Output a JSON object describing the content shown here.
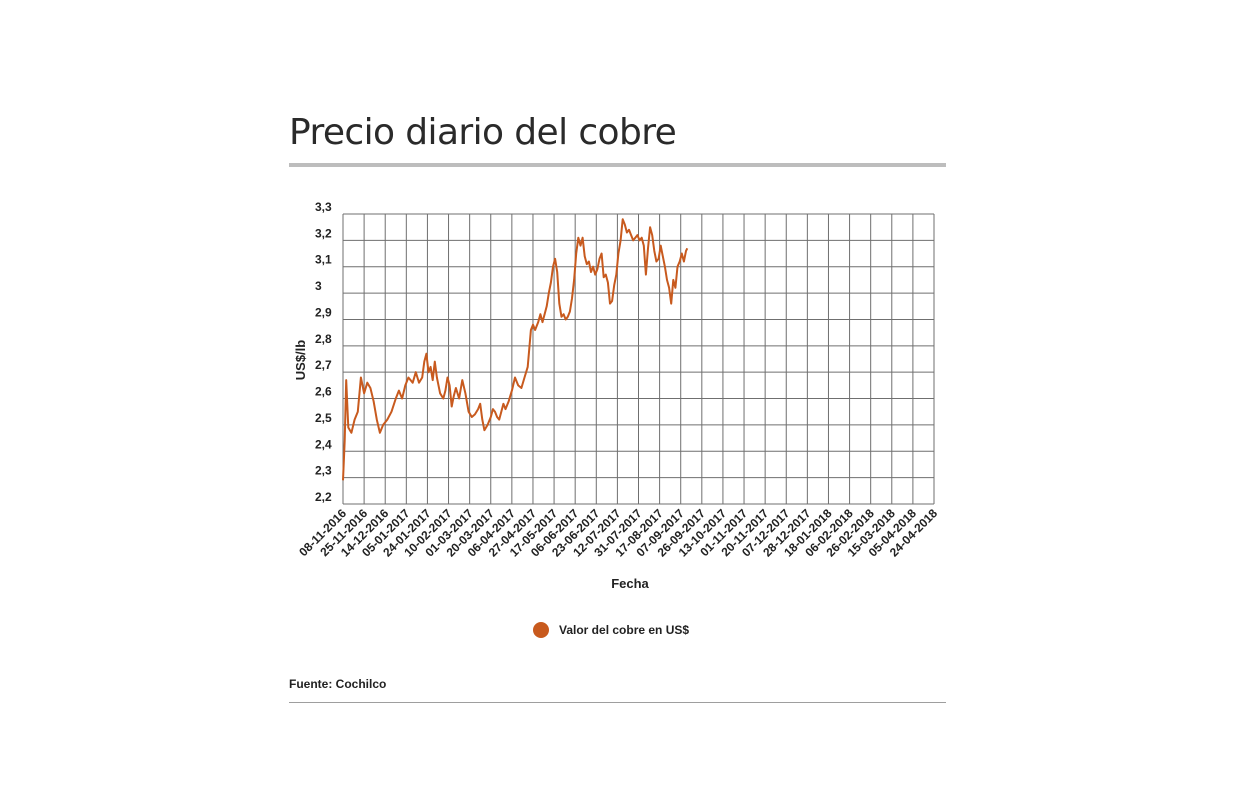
{
  "title": "Precio diario del cobre",
  "source": "Fuente: Cochilco",
  "colors": {
    "line": "#c85a1e",
    "grid": "#6f6f6f",
    "rule": "#bdbdbd"
  },
  "chart_data": {
    "type": "line",
    "xlabel": "Fecha",
    "ylabel": "US$/lb",
    "ylim": [
      2.2,
      3.3
    ],
    "yticks": [
      "2,2",
      "2,3",
      "2,4",
      "2,5",
      "2,6",
      "2,7",
      "2,8",
      "2,9",
      "3",
      "3,1",
      "3,2",
      "3,3"
    ],
    "xticks": [
      "08-11-2016",
      "25-11-2016",
      "14-12-2016",
      "05-01-2017",
      "24-01-2017",
      "10-02-2017",
      "01-03-2017",
      "20-03-2017",
      "06-04-2017",
      "27-04-2017",
      "17-05-2017",
      "06-06-2017",
      "23-06-2017",
      "12-07-2017",
      "31-07-2017",
      "17-08-2017",
      "07-09-2017",
      "26-09-2017",
      "13-10-2017",
      "01-11-2017",
      "20-11-2017",
      "07-12-2017",
      "28-12-2017",
      "18-01-2018",
      "06-02-2018",
      "26-02-2018",
      "15-03-2018",
      "05-04-2018",
      "24-04-2018"
    ],
    "grid": true,
    "legend": "bottom-center",
    "series": [
      {
        "name": "Valor del cobre en US$",
        "color": "#c85a1e",
        "points": [
          [
            0,
            2.29
          ],
          [
            0.08,
            2.44
          ],
          [
            0.15,
            2.67
          ],
          [
            0.25,
            2.49
          ],
          [
            0.4,
            2.47
          ],
          [
            0.55,
            2.52
          ],
          [
            0.7,
            2.55
          ],
          [
            0.85,
            2.68
          ],
          [
            1.0,
            2.62
          ],
          [
            1.15,
            2.66
          ],
          [
            1.3,
            2.64
          ],
          [
            1.45,
            2.59
          ],
          [
            1.6,
            2.52
          ],
          [
            1.75,
            2.47
          ],
          [
            1.9,
            2.5
          ],
          [
            2.1,
            2.52
          ],
          [
            2.3,
            2.55
          ],
          [
            2.5,
            2.6
          ],
          [
            2.65,
            2.63
          ],
          [
            2.8,
            2.6
          ],
          [
            2.95,
            2.65
          ],
          [
            3.1,
            2.68
          ],
          [
            3.3,
            2.66
          ],
          [
            3.45,
            2.7
          ],
          [
            3.6,
            2.66
          ],
          [
            3.75,
            2.68
          ],
          [
            3.85,
            2.74
          ],
          [
            3.95,
            2.77
          ],
          [
            4.05,
            2.7
          ],
          [
            4.15,
            2.72
          ],
          [
            4.25,
            2.67
          ],
          [
            4.35,
            2.74
          ],
          [
            4.45,
            2.68
          ],
          [
            4.6,
            2.62
          ],
          [
            4.75,
            2.6
          ],
          [
            4.85,
            2.63
          ],
          [
            4.95,
            2.68
          ],
          [
            5.05,
            2.65
          ],
          [
            5.15,
            2.57
          ],
          [
            5.25,
            2.61
          ],
          [
            5.35,
            2.64
          ],
          [
            5.5,
            2.6
          ],
          [
            5.65,
            2.67
          ],
          [
            5.8,
            2.62
          ],
          [
            5.95,
            2.55
          ],
          [
            6.1,
            2.53
          ],
          [
            6.25,
            2.54
          ],
          [
            6.4,
            2.56
          ],
          [
            6.5,
            2.58
          ],
          [
            6.6,
            2.52
          ],
          [
            6.7,
            2.48
          ],
          [
            6.85,
            2.5
          ],
          [
            7.0,
            2.53
          ],
          [
            7.1,
            2.56
          ],
          [
            7.2,
            2.55
          ],
          [
            7.3,
            2.53
          ],
          [
            7.4,
            2.52
          ],
          [
            7.5,
            2.55
          ],
          [
            7.6,
            2.58
          ],
          [
            7.7,
            2.56
          ],
          [
            7.85,
            2.59
          ],
          [
            8.0,
            2.63
          ],
          [
            8.15,
            2.68
          ],
          [
            8.3,
            2.65
          ],
          [
            8.45,
            2.64
          ],
          [
            8.6,
            2.68
          ],
          [
            8.75,
            2.72
          ],
          [
            8.9,
            2.86
          ],
          [
            9.0,
            2.88
          ],
          [
            9.1,
            2.86
          ],
          [
            9.25,
            2.89
          ],
          [
            9.35,
            2.92
          ],
          [
            9.45,
            2.89
          ],
          [
            9.55,
            2.92
          ],
          [
            9.65,
            2.95
          ],
          [
            9.75,
            3.0
          ],
          [
            9.85,
            3.04
          ],
          [
            9.95,
            3.1
          ],
          [
            10.05,
            3.13
          ],
          [
            10.15,
            3.08
          ],
          [
            10.25,
            2.96
          ],
          [
            10.35,
            2.91
          ],
          [
            10.45,
            2.92
          ],
          [
            10.55,
            2.9
          ],
          [
            10.65,
            2.91
          ],
          [
            10.75,
            2.93
          ],
          [
            10.85,
            2.98
          ],
          [
            10.95,
            3.05
          ],
          [
            11.05,
            3.15
          ],
          [
            11.15,
            3.21
          ],
          [
            11.25,
            3.18
          ],
          [
            11.35,
            3.21
          ],
          [
            11.45,
            3.14
          ],
          [
            11.55,
            3.11
          ],
          [
            11.65,
            3.12
          ],
          [
            11.75,
            3.08
          ],
          [
            11.85,
            3.1
          ],
          [
            11.95,
            3.07
          ],
          [
            12.05,
            3.09
          ],
          [
            12.15,
            3.13
          ],
          [
            12.25,
            3.15
          ],
          [
            12.35,
            3.06
          ],
          [
            12.45,
            3.07
          ],
          [
            12.55,
            3.04
          ],
          [
            12.65,
            2.96
          ],
          [
            12.75,
            2.97
          ],
          [
            12.85,
            3.03
          ],
          [
            12.95,
            3.07
          ],
          [
            13.05,
            3.15
          ],
          [
            13.15,
            3.2
          ],
          [
            13.25,
            3.28
          ],
          [
            13.35,
            3.26
          ],
          [
            13.45,
            3.23
          ],
          [
            13.55,
            3.24
          ],
          [
            13.65,
            3.22
          ],
          [
            13.75,
            3.2
          ],
          [
            13.85,
            3.21
          ],
          [
            13.95,
            3.22
          ],
          [
            14.05,
            3.2
          ],
          [
            14.15,
            3.21
          ],
          [
            14.25,
            3.18
          ],
          [
            14.35,
            3.07
          ],
          [
            14.45,
            3.17
          ],
          [
            14.55,
            3.25
          ],
          [
            14.65,
            3.22
          ],
          [
            14.75,
            3.16
          ],
          [
            14.85,
            3.12
          ],
          [
            14.95,
            3.13
          ],
          [
            15.05,
            3.18
          ],
          [
            15.15,
            3.14
          ],
          [
            15.25,
            3.1
          ],
          [
            15.35,
            3.05
          ],
          [
            15.45,
            3.02
          ],
          [
            15.55,
            2.96
          ],
          [
            15.65,
            3.05
          ],
          [
            15.75,
            3.02
          ],
          [
            15.85,
            3.1
          ],
          [
            15.95,
            3.12
          ],
          [
            16.05,
            3.15
          ],
          [
            16.15,
            3.12
          ],
          [
            16.25,
            3.16
          ],
          [
            16.31,
            3.17
          ]
        ]
      }
    ]
  }
}
